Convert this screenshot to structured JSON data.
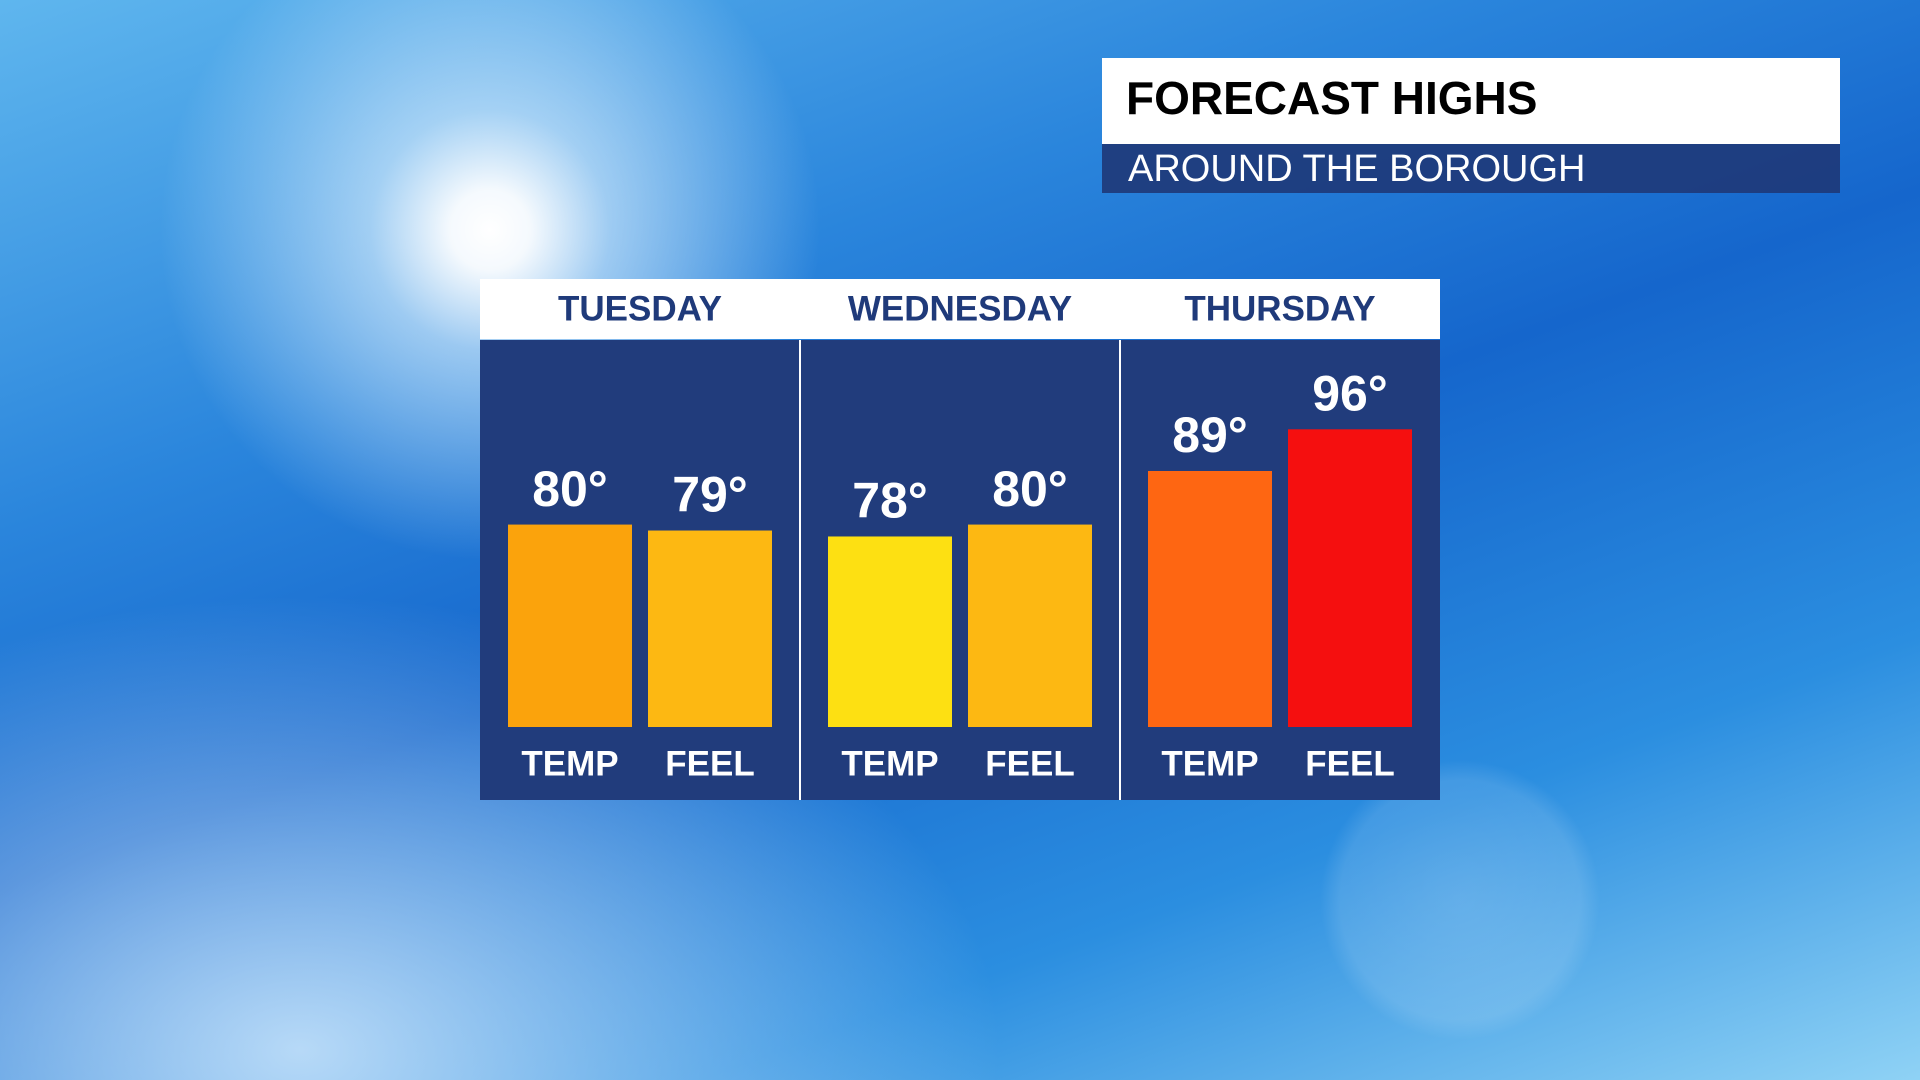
{
  "chart_data": {
    "type": "bar",
    "title": "FORECAST HIGHS",
    "subtitle": "AROUND THE BOROUGH",
    "categories": [
      "TUESDAY",
      "WEDNESDAY",
      "THURSDAY"
    ],
    "series": [
      {
        "name": "TEMP",
        "colors": [
          "#fba30c",
          "#fde012",
          "#fe6612"
        ],
        "values": [
          80,
          78,
          89
        ],
        "value_labels": [
          "80°",
          "78°",
          "89°"
        ]
      },
      {
        "name": "FEEL",
        "colors": [
          "#fdb812",
          "#fdb812",
          "#f50f0f"
        ],
        "values": [
          79,
          80,
          96
        ],
        "value_labels": [
          "79°",
          "80°",
          "96°"
        ]
      }
    ],
    "ylim": [
      46,
      111
    ]
  }
}
